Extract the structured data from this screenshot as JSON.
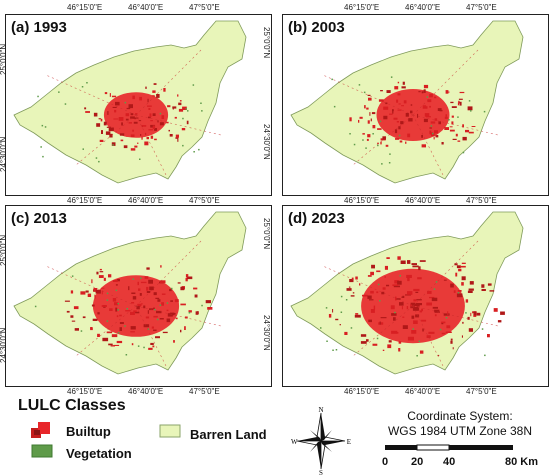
{
  "panels": [
    {
      "label": "(a) 1993"
    },
    {
      "label": "(b) 2003"
    },
    {
      "label": "(c) 2013"
    },
    {
      "label": "(d) 2023"
    }
  ],
  "ticks": {
    "lon": [
      "46°15'0\"E",
      "46°40'0\"E",
      "47°5'0\"E"
    ],
    "lat": [
      "25°0'0\"N",
      "24°30'0\"N"
    ]
  },
  "legend": {
    "title": "LULC Classes",
    "classes": [
      {
        "label": "Builtup",
        "color": "#e8262a"
      },
      {
        "label": "Vegetation",
        "color": "#5f9b4a"
      },
      {
        "label": "Barren Land",
        "color": "#e8f5b9"
      }
    ]
  },
  "compass": {
    "n": "N",
    "s": "S",
    "e": "E",
    "w": "W"
  },
  "coordinate_system": {
    "line1": "Coordinate System:",
    "line2": "WGS 1984 UTM Zone 38N"
  },
  "scale": {
    "labels": [
      "0",
      "20",
      "40",
      "80 Km"
    ]
  },
  "urban_extent": [
    0.22,
    0.3,
    0.42,
    0.58
  ]
}
